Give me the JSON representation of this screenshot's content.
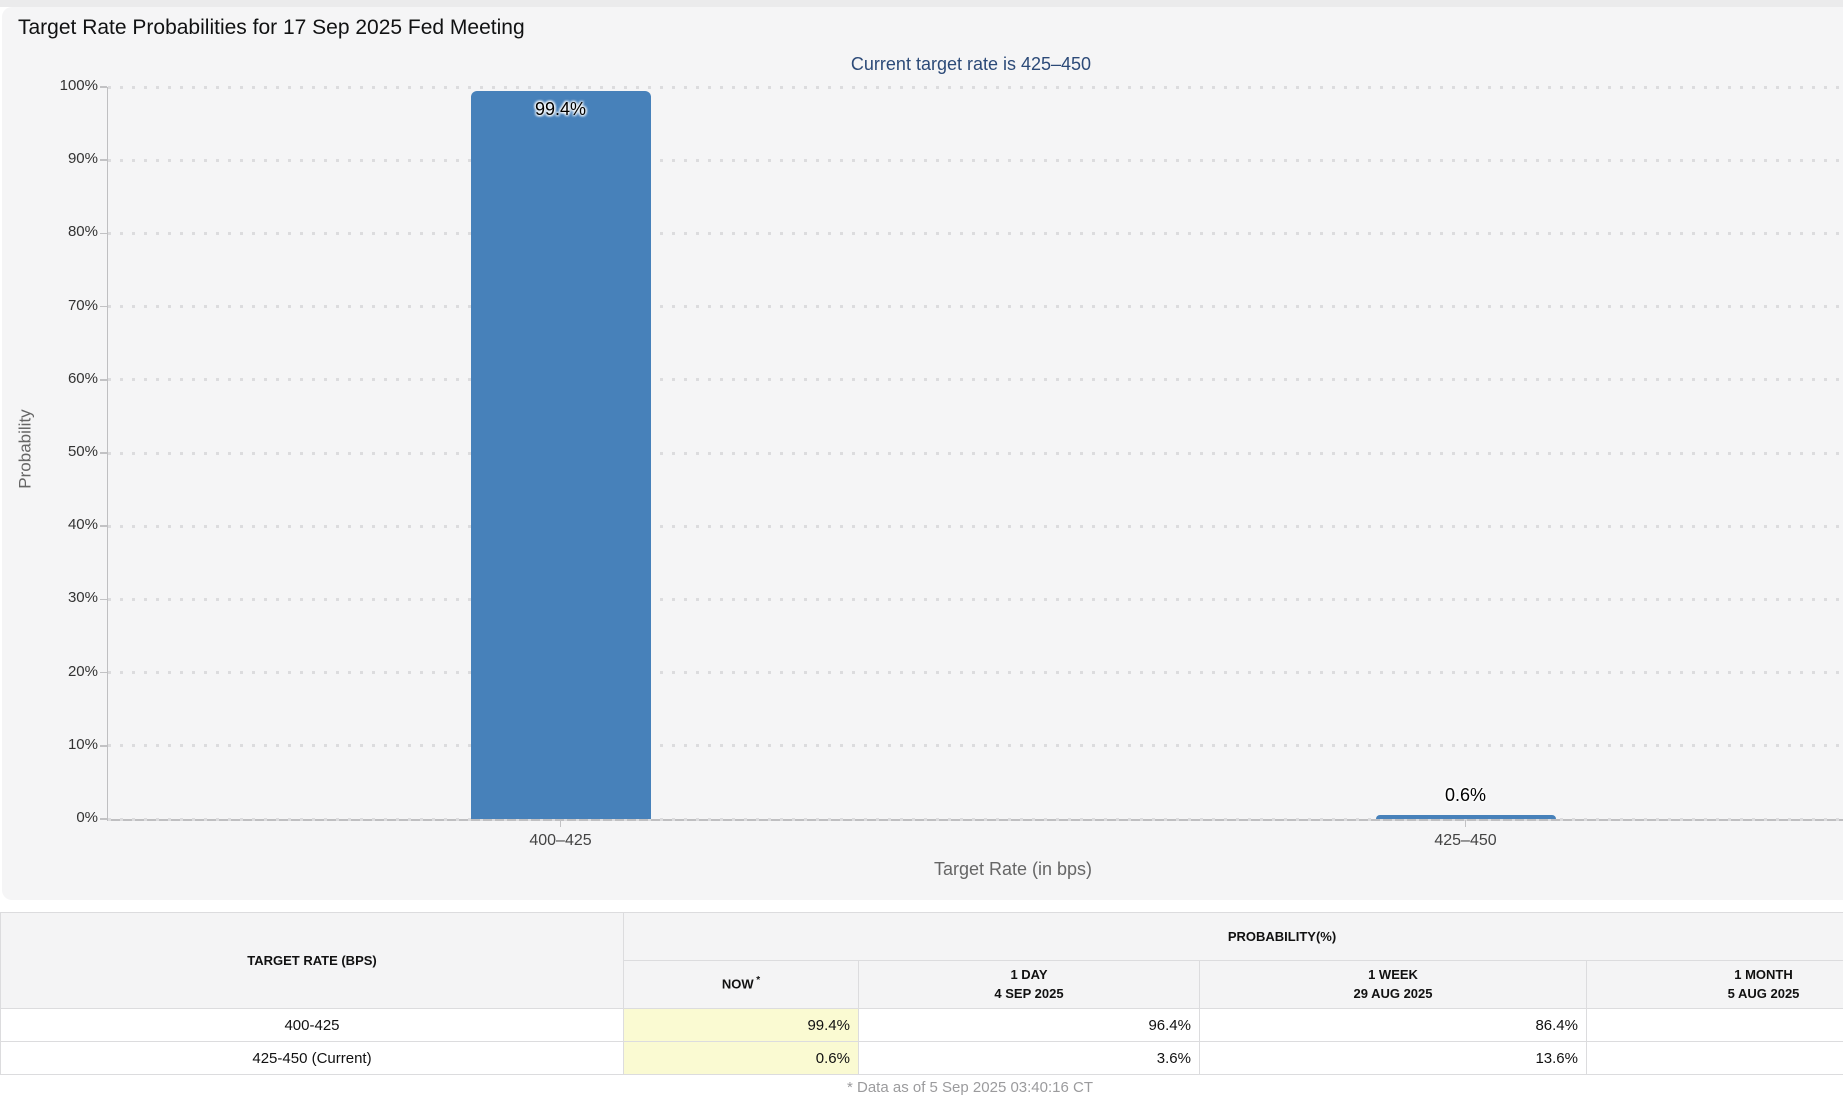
{
  "page": {
    "footnote": "* Data as of 5 Sep 2025 03:40:16 CT"
  },
  "colors": {
    "bar": "#4781ba",
    "subtitle_text": "#2c4a78",
    "now_column_highlight": "#fafad2",
    "panel_background": "#f5f5f6"
  },
  "chart_data": {
    "type": "bar",
    "title": "Target Rate Probabilities for 17 Sep 2025 Fed Meeting",
    "subtitle": "Current target rate is 425–450",
    "categories": [
      "400–425",
      "425–450"
    ],
    "values": [
      99.4,
      0.6
    ],
    "value_labels": [
      "99.4%",
      "0.6%"
    ],
    "xlabel": "Target Rate (in bps)",
    "ylabel": "Probability",
    "ylim": [
      0,
      100
    ],
    "ytick_values": [
      0,
      10,
      20,
      30,
      40,
      50,
      60,
      70,
      80,
      90,
      100
    ],
    "ytick_labels": [
      "0%",
      "10%",
      "20%",
      "30%",
      "40%",
      "50%",
      "60%",
      "70%",
      "80%",
      "90%",
      "100%"
    ],
    "grid": "dotted-horizontal",
    "legend": "none",
    "bar_color": "#4781ba"
  },
  "table": {
    "corner_header": "TARGET RATE (BPS)",
    "group_header": "PROBABILITY(%)",
    "columns": [
      {
        "label": "NOW",
        "sup": "*",
        "sub": ""
      },
      {
        "label": "1 DAY",
        "sub": "4 SEP 2025"
      },
      {
        "label": "1 WEEK",
        "sub": "29 AUG 2025"
      },
      {
        "label": "1 MONTH",
        "sub": "5 AUG 2025"
      }
    ],
    "rows": [
      {
        "rate": "400-425",
        "now": "99.4%",
        "day": "96.4%",
        "week": "86.4%",
        "month": ""
      },
      {
        "rate": "425-450 (Current)",
        "now": "0.6%",
        "day": "3.6%",
        "week": "13.6%",
        "month": ""
      }
    ]
  }
}
